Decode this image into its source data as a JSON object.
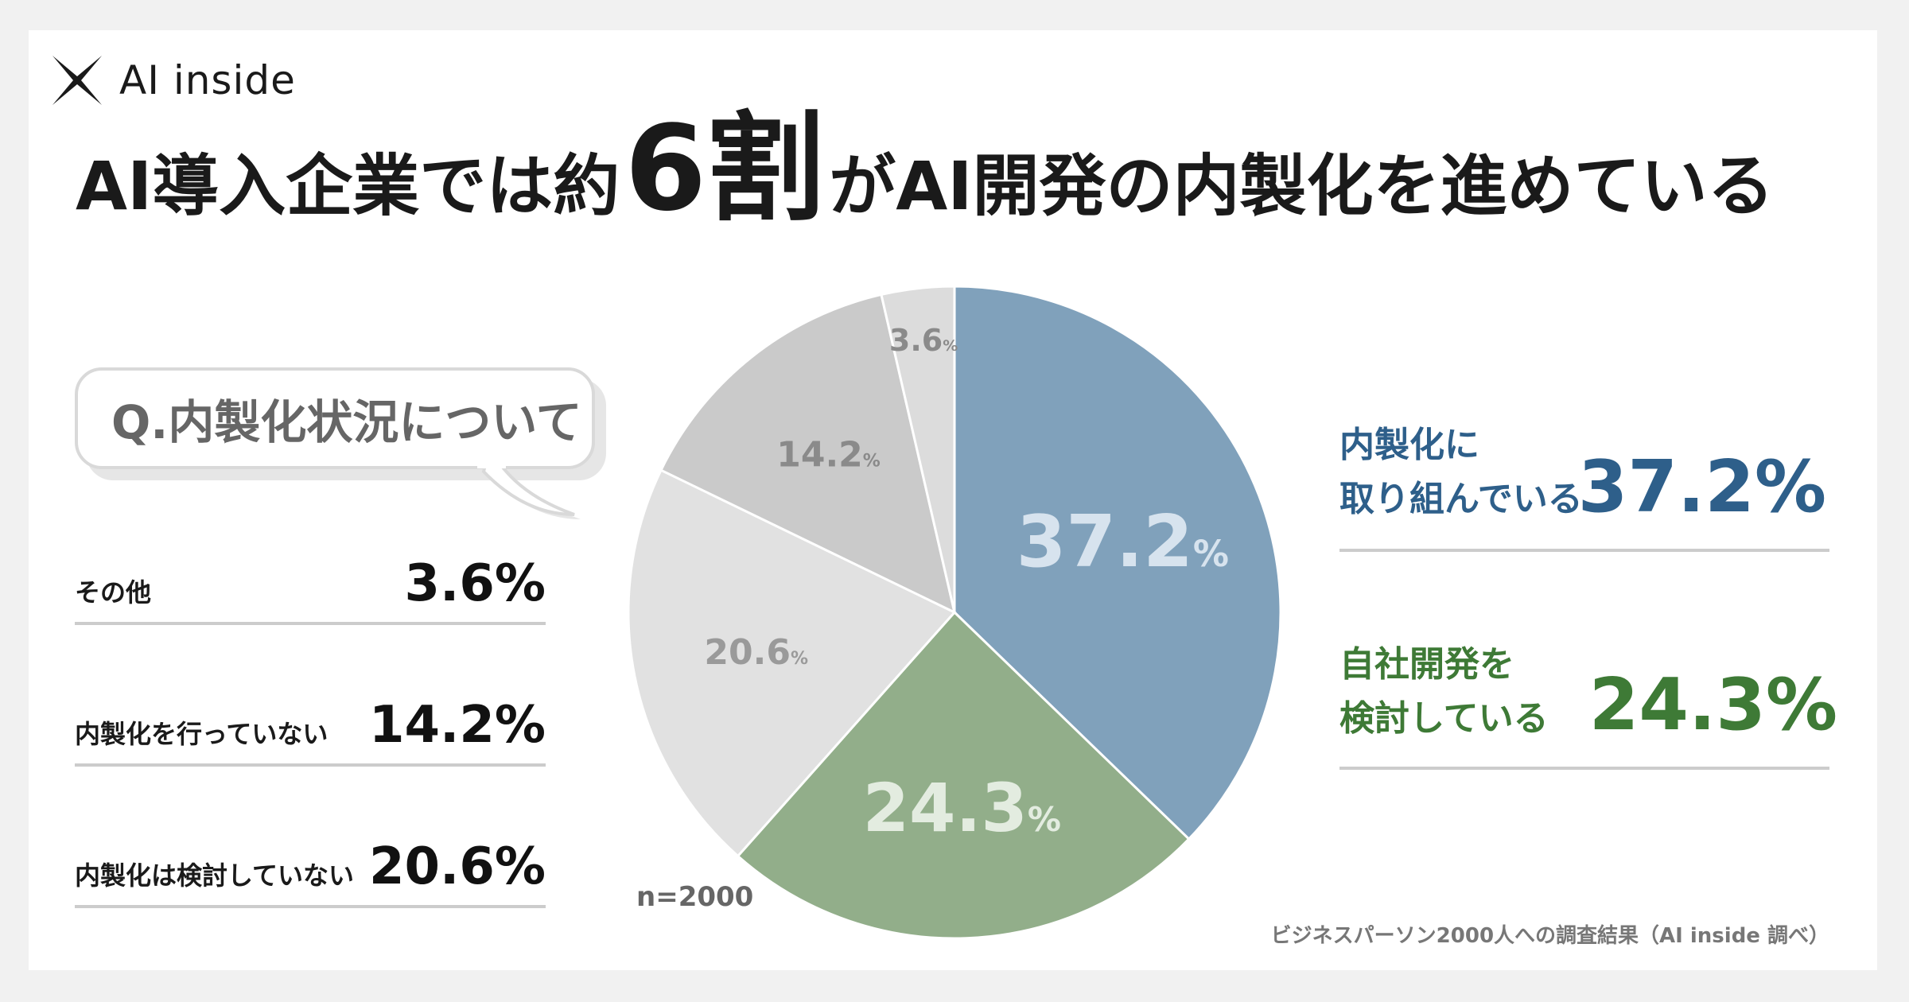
{
  "brand": {
    "name": "AI inside"
  },
  "headline": {
    "before": "AI導入企業では約",
    "big": "6割",
    "after": "がAI開発の内製化を進めている"
  },
  "question": "Q.内製化状況について",
  "left_items": [
    {
      "label": "その他",
      "value": "3.6%"
    },
    {
      "label": "内製化を行っていない",
      "value": "14.2%"
    },
    {
      "label": "内製化は検討していない",
      "value": "20.6%"
    }
  ],
  "right_items": [
    {
      "label_line1": "内製化に",
      "label_line2": "取り組んでいる",
      "value": "37.2%",
      "color": "#2e5f8a"
    },
    {
      "label_line1": "自社開発を",
      "label_line2": "検討している",
      "value": "24.3%",
      "color": "#3e7a36"
    }
  ],
  "sample_size": "n=2000",
  "source": "ビジネスパーソン2000人への調査結果（AI inside 調べ）",
  "chart_data": {
    "type": "pie",
    "title": "",
    "unit": "%",
    "slices": [
      {
        "name": "内製化に取り組んでいる",
        "value": 37.2,
        "label": "37.2",
        "color": "#80a1bb",
        "label_color": "#d7e3ee"
      },
      {
        "name": "自社開発を検討している",
        "value": 24.3,
        "label": "24.3",
        "color": "#92ae8a",
        "label_color": "#e3ece0"
      },
      {
        "name": "内製化は検討していない",
        "value": 20.6,
        "label": "20.6",
        "color": "#e1e1e1",
        "label_color": "#9a9a9a"
      },
      {
        "name": "内製化を行っていない",
        "value": 14.2,
        "label": "14.2",
        "color": "#cacaca",
        "label_color": "#8a8a8a"
      },
      {
        "name": "その他",
        "value": 3.6,
        "label": "3.6",
        "color": "#dcdcdc",
        "label_color": "#8a8a8a"
      }
    ]
  }
}
